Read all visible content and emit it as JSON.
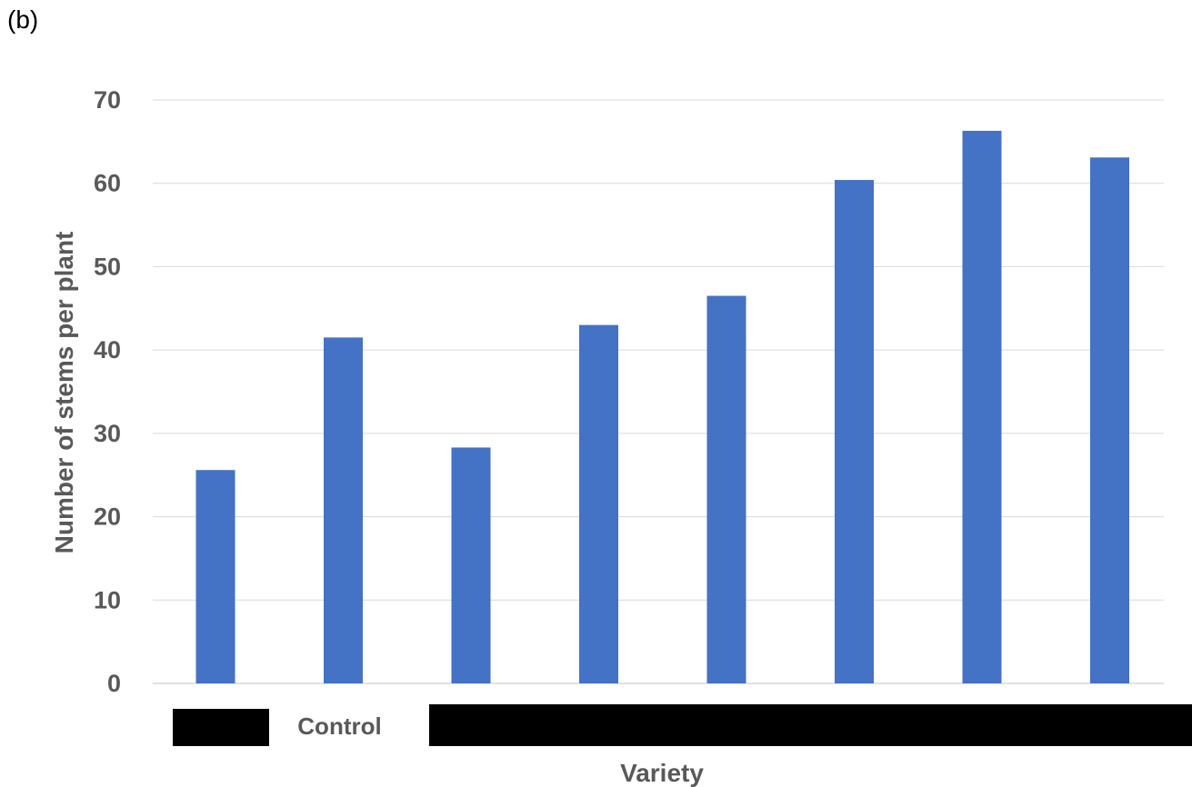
{
  "panel_label": "(b)",
  "colors": {
    "bar": "#4472c4",
    "grid": "#d9d9d9",
    "text": "#595959",
    "redaction": "#000000"
  },
  "chart_data": {
    "type": "bar",
    "title": "",
    "xlabel": "Variety",
    "ylabel": "Number of stems per plant",
    "ylim": [
      0,
      70
    ],
    "yticks": [
      0,
      10,
      20,
      30,
      40,
      50,
      60,
      70
    ],
    "grid": true,
    "legend": "none",
    "categories": [
      "",
      "Control",
      "",
      "",
      "",
      "",
      "",
      ""
    ],
    "values": [
      25.6,
      41.5,
      28.3,
      43.0,
      46.5,
      60.4,
      66.3,
      63.1
    ]
  }
}
